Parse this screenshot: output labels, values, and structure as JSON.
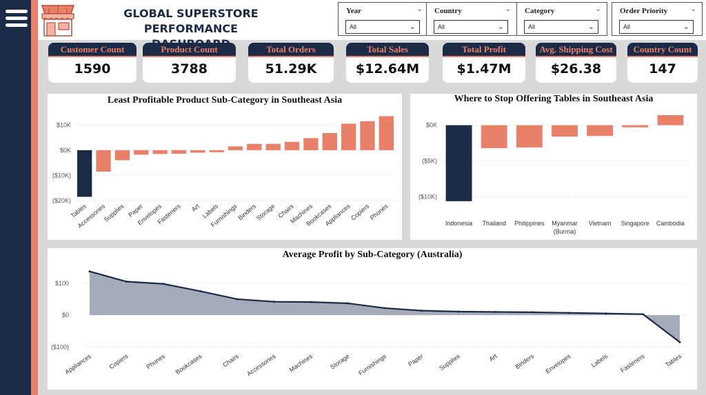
{
  "header": {
    "title_line1": "GLOBAL SUPERSTORE PERFORMANCE",
    "title_line2": "DASHBOARD",
    "logo_icon": "storefront-icon",
    "menu_icon": "hamburger-menu-icon"
  },
  "filters": [
    {
      "label": "Year",
      "value": "All"
    },
    {
      "label": "Country",
      "value": "All"
    },
    {
      "label": "Category",
      "value": "All"
    },
    {
      "label": "Order Priority",
      "value": "All"
    }
  ],
  "kpis": [
    {
      "label": "Customer Count",
      "value": "1590"
    },
    {
      "label": "Product Count",
      "value": "3788"
    },
    {
      "label": "Total Orders",
      "value": "51.29K"
    },
    {
      "label": "Total Sales",
      "value": "$12.64M"
    },
    {
      "label": "Total Profit",
      "value": "$1.47M"
    },
    {
      "label": "Avg. Shipping Cost",
      "value": "$26.38"
    },
    {
      "label": "Country Count",
      "value": "147"
    }
  ],
  "colors": {
    "navy": "#1b2a47",
    "salmon": "#e8806a",
    "area": "#a0a6b4"
  },
  "chart_data": [
    {
      "type": "bar",
      "title": "Least Profitable Product Sub-Category in Southeast Asia",
      "categories": [
        "Tables",
        "Accessories",
        "Supplies",
        "Paper",
        "Envelopes",
        "Fasteners",
        "Art",
        "Labels",
        "Furnishings",
        "Binders",
        "Storage",
        "Chairs",
        "Machines",
        "Bookcases",
        "Appliances",
        "Copiers",
        "Phones"
      ],
      "values": [
        -18500,
        -8500,
        -4000,
        -1800,
        -1500,
        -1400,
        -1000,
        -800,
        1500,
        2500,
        2500,
        3300,
        4800,
        6800,
        10500,
        11500,
        13500
      ],
      "highlight_index": 0,
      "yticks": [
        "$10K",
        "$0K",
        "($10K)",
        "($20K)"
      ],
      "ytick_values": [
        10000,
        0,
        -10000,
        -20000
      ],
      "ylim": [
        -20000,
        15000
      ]
    },
    {
      "type": "bar",
      "title": "Where to Stop Offering Tables in Southeast Asia",
      "categories": [
        "Indonesia",
        "Thailand",
        "Philippines",
        "Myanmar (Burma)",
        "Vietnam",
        "Singapore",
        "Cambodia"
      ],
      "values": [
        -10600,
        -3200,
        -3100,
        -1600,
        -1500,
        -300,
        1400
      ],
      "highlight_index": 0,
      "yticks": [
        "$0K",
        "($5K)",
        "($10K)"
      ],
      "ytick_values": [
        0,
        -5000,
        -10000
      ],
      "ylim": [
        -11000,
        1500
      ]
    },
    {
      "type": "area",
      "title": "Average Profit by Sub-Category (Australia)",
      "categories": [
        "Appliances",
        "Copiers",
        "Phones",
        "Bookcases",
        "Chairs",
        "Accessories",
        "Machines",
        "Storage",
        "Furnishings",
        "Paper",
        "Supplies",
        "Art",
        "Binders",
        "Envelopes",
        "Labels",
        "Fasteners",
        "Tables"
      ],
      "values": [
        137,
        105,
        98,
        75,
        50,
        42,
        41,
        37,
        22,
        14,
        11,
        10,
        9,
        7,
        5,
        3,
        -85
      ],
      "yticks": [
        "$100",
        "$0",
        "($100)"
      ],
      "ytick_values": [
        100,
        0,
        -100
      ],
      "ylim": [
        -110,
        145
      ]
    }
  ]
}
